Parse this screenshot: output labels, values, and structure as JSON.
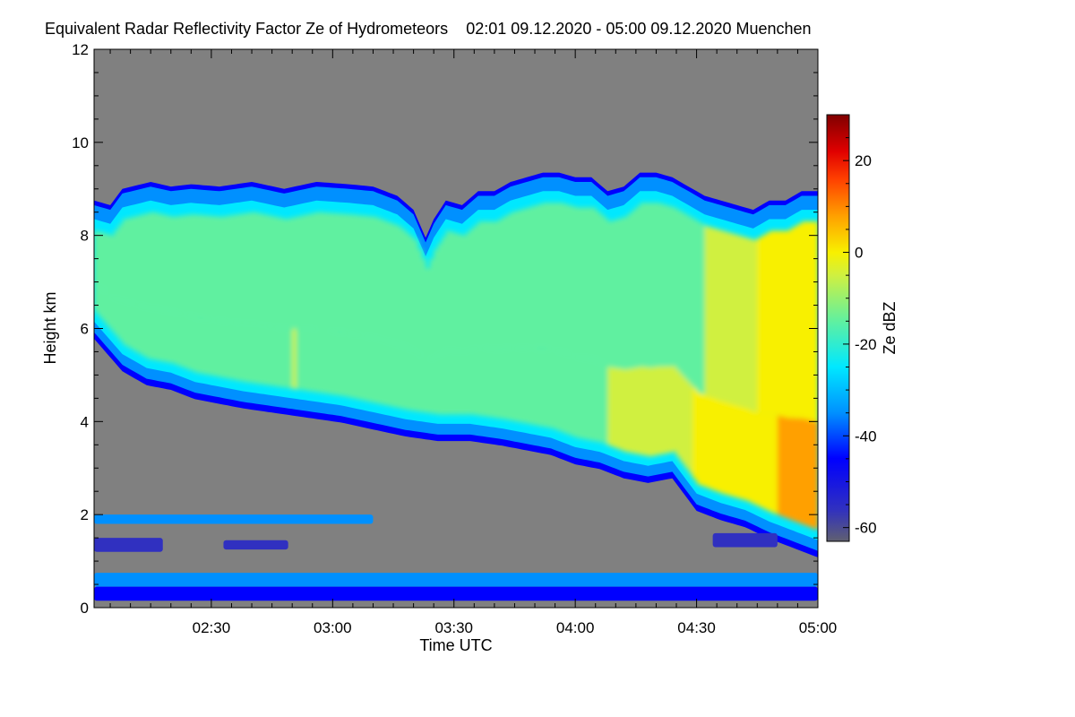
{
  "chart_data": {
    "type": "heatmap",
    "title": "Equivalent Radar Reflectivity Factor Ze of Hydrometeors",
    "subtitle": "02:01 09.12.2020 - 05:00 09.12.2020 Muenchen",
    "xlabel": "Time UTC",
    "ylabel": "Height km",
    "colorbar_label": "Ze dBZ",
    "x_range_minutes": [
      121,
      300
    ],
    "x_ticks": [
      {
        "label": "02:30",
        "minute": 150
      },
      {
        "label": "03:00",
        "minute": 180
      },
      {
        "label": "03:30",
        "minute": 210
      },
      {
        "label": "04:00",
        "minute": 240
      },
      {
        "label": "04:30",
        "minute": 270
      },
      {
        "label": "05:00",
        "minute": 300
      }
    ],
    "ylim": [
      0,
      12
    ],
    "y_ticks": [
      {
        "label": "0",
        "value": 0
      },
      {
        "label": "2",
        "value": 2
      },
      {
        "label": "4",
        "value": 4
      },
      {
        "label": "6",
        "value": 6
      },
      {
        "label": "8",
        "value": 8
      },
      {
        "label": "10",
        "value": 10
      },
      {
        "label": "12",
        "value": 12
      }
    ],
    "color_range": [
      -63,
      30
    ],
    "color_ticks": [
      {
        "label": "20",
        "value": 20
      },
      {
        "label": "0",
        "value": 0
      },
      {
        "label": "-20",
        "value": -20
      },
      {
        "label": "-40",
        "value": -40
      },
      {
        "label": "-60",
        "value": -60
      }
    ],
    "colors": {
      "no_data": "#808080"
    },
    "colormap": [
      {
        "value": -63,
        "color": "#606070"
      },
      {
        "value": -56,
        "color": "#3030c0"
      },
      {
        "value": -45,
        "color": "#0000ff"
      },
      {
        "value": -35,
        "color": "#0090ff"
      },
      {
        "value": -25,
        "color": "#00e8ff"
      },
      {
        "value": -15,
        "color": "#60f0a0"
      },
      {
        "value": -5,
        "color": "#d0f040"
      },
      {
        "value": 0,
        "color": "#f8f000"
      },
      {
        "value": 8,
        "color": "#ffa000"
      },
      {
        "value": 16,
        "color": "#ff4000"
      },
      {
        "value": 22,
        "color": "#e00000"
      },
      {
        "value": 30,
        "color": "#800000"
      }
    ],
    "cloud_top_km": [
      [
        121,
        8.7
      ],
      [
        125,
        8.6
      ],
      [
        128,
        8.95
      ],
      [
        135,
        9.1
      ],
      [
        140,
        9.0
      ],
      [
        145,
        9.05
      ],
      [
        152,
        9.0
      ],
      [
        160,
        9.1
      ],
      [
        168,
        8.95
      ],
      [
        176,
        9.1
      ],
      [
        184,
        9.05
      ],
      [
        190,
        9.0
      ],
      [
        196,
        8.8
      ],
      [
        200,
        8.5
      ],
      [
        203,
        7.9
      ],
      [
        205,
        8.3
      ],
      [
        208,
        8.7
      ],
      [
        212,
        8.6
      ],
      [
        216,
        8.9
      ],
      [
        220,
        8.9
      ],
      [
        224,
        9.1
      ],
      [
        228,
        9.2
      ],
      [
        232,
        9.3
      ],
      [
        236,
        9.3
      ],
      [
        240,
        9.2
      ],
      [
        244,
        9.2
      ],
      [
        248,
        8.9
      ],
      [
        252,
        9.0
      ],
      [
        256,
        9.3
      ],
      [
        260,
        9.3
      ],
      [
        264,
        9.2
      ],
      [
        268,
        9.0
      ],
      [
        272,
        8.8
      ],
      [
        276,
        8.7
      ],
      [
        280,
        8.6
      ],
      [
        284,
        8.5
      ],
      [
        288,
        8.7
      ],
      [
        292,
        8.7
      ],
      [
        296,
        8.9
      ],
      [
        300,
        8.9
      ]
    ],
    "cloud_base_km": [
      [
        121,
        5.9
      ],
      [
        124,
        5.6
      ],
      [
        128,
        5.2
      ],
      [
        134,
        4.9
      ],
      [
        140,
        4.8
      ],
      [
        146,
        4.6
      ],
      [
        152,
        4.5
      ],
      [
        158,
        4.4
      ],
      [
        166,
        4.3
      ],
      [
        174,
        4.2
      ],
      [
        182,
        4.1
      ],
      [
        190,
        3.95
      ],
      [
        198,
        3.8
      ],
      [
        206,
        3.7
      ],
      [
        214,
        3.7
      ],
      [
        222,
        3.6
      ],
      [
        228,
        3.5
      ],
      [
        234,
        3.4
      ],
      [
        240,
        3.2
      ],
      [
        246,
        3.1
      ],
      [
        252,
        2.9
      ],
      [
        258,
        2.8
      ],
      [
        264,
        2.9
      ],
      [
        270,
        2.2
      ],
      [
        276,
        2.0
      ],
      [
        282,
        1.85
      ],
      [
        288,
        1.6
      ],
      [
        294,
        1.4
      ],
      [
        300,
        1.2
      ]
    ],
    "reflectivity_core_dbz": [
      [
        121,
        -8
      ],
      [
        140,
        -6
      ],
      [
        170,
        -5
      ],
      [
        200,
        -7
      ],
      [
        230,
        -8
      ],
      [
        260,
        -3
      ],
      [
        280,
        4
      ],
      [
        300,
        12
      ]
    ],
    "low_layers": [
      {
        "x": [
          121,
          190
        ],
        "height_km": [
          1.8,
          2.0
        ],
        "dbz": -28
      },
      {
        "x": [
          121,
          138
        ],
        "height_km": [
          1.2,
          1.5
        ],
        "dbz": -48
      },
      {
        "x": [
          153,
          169
        ],
        "height_km": [
          1.25,
          1.45
        ],
        "dbz": -48
      },
      {
        "x": [
          274,
          290
        ],
        "height_km": [
          1.3,
          1.6
        ],
        "dbz": -48
      },
      {
        "x": [
          121,
          300
        ],
        "height_km": [
          0.45,
          0.75
        ],
        "dbz": -28
      },
      {
        "x": [
          121,
          300
        ],
        "height_km": [
          0.15,
          0.45
        ],
        "dbz": -45
      }
    ]
  }
}
